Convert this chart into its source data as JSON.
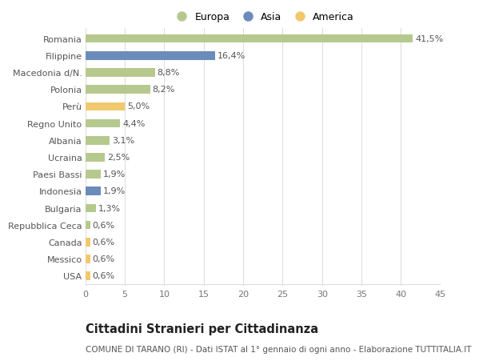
{
  "categories": [
    "Romania",
    "Filippine",
    "Macedonia d/N.",
    "Polonia",
    "Perù",
    "Regno Unito",
    "Albania",
    "Ucraina",
    "Paesi Bassi",
    "Indonesia",
    "Bulgaria",
    "Repubblica Ceca",
    "Canada",
    "Messico",
    "USA"
  ],
  "values": [
    41.5,
    16.4,
    8.8,
    8.2,
    5.0,
    4.4,
    3.1,
    2.5,
    1.9,
    1.9,
    1.3,
    0.6,
    0.6,
    0.6,
    0.6
  ],
  "labels": [
    "41,5%",
    "16,4%",
    "8,8%",
    "8,2%",
    "5,0%",
    "4,4%",
    "3,1%",
    "2,5%",
    "1,9%",
    "1,9%",
    "1,3%",
    "0,6%",
    "0,6%",
    "0,6%",
    "0,6%"
  ],
  "continents": [
    "Europa",
    "Asia",
    "Europa",
    "Europa",
    "America",
    "Europa",
    "Europa",
    "Europa",
    "Europa",
    "Asia",
    "Europa",
    "Europa",
    "America",
    "America",
    "America"
  ],
  "colors": {
    "Europa": "#b5c98e",
    "Asia": "#6b8cba",
    "America": "#f0c96e"
  },
  "xlim": [
    0,
    45
  ],
  "xticks": [
    0,
    5,
    10,
    15,
    20,
    25,
    30,
    35,
    40,
    45
  ],
  "background_color": "#ffffff",
  "grid_color": "#dddddd",
  "title1": "Cittadini Stranieri per Cittadinanza",
  "title2": "COMUNE DI TARANO (RI) - Dati ISTAT al 1° gennaio di ogni anno - Elaborazione TUTTITALIA.IT",
  "bar_height": 0.5,
  "label_fontsize": 8.0,
  "ylabel_fontsize": 8.0,
  "xlabel_fontsize": 8.0,
  "title1_fontsize": 10.5,
  "title2_fontsize": 7.5,
  "legend_fontsize": 9.0
}
